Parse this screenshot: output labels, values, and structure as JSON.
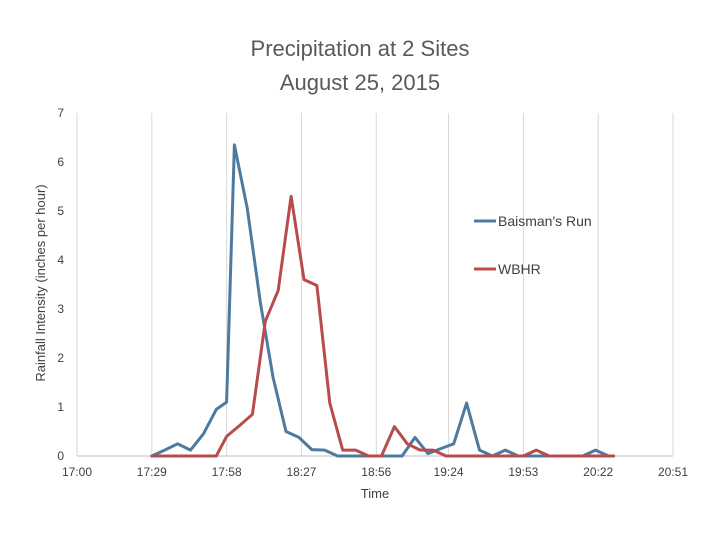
{
  "chart_data": {
    "type": "line",
    "title": [
      "Precipitation at 2 Sites",
      "August 25, 2015"
    ],
    "xlabel": "Time",
    "ylabel": "Rainfall Intensity (inches per hour)",
    "x_ticks": [
      "17:00",
      "17:29",
      "17:58",
      "18:27",
      "18:56",
      "19:24",
      "19:53",
      "20:22",
      "20:51"
    ],
    "x_range": [
      "17:00",
      "20:51"
    ],
    "ylim": [
      0,
      7
    ],
    "y_ticks": [
      0,
      1,
      2,
      3,
      4,
      5,
      6,
      7
    ],
    "grid": "vertical",
    "legend_position": "right",
    "series": [
      {
        "name": "Baisman's Run",
        "color": "#4f7aa0",
        "points": [
          [
            "17:29",
            0
          ],
          [
            "17:34",
            0.12
          ],
          [
            "17:39",
            0.25
          ],
          [
            "17:44",
            0.12
          ],
          [
            "17:49",
            0.45
          ],
          [
            "17:54",
            0.95
          ],
          [
            "17:58",
            1.1
          ],
          [
            "18:01",
            6.35
          ],
          [
            "18:06",
            5.05
          ],
          [
            "18:11",
            3.15
          ],
          [
            "18:16",
            1.6
          ],
          [
            "18:21",
            0.5
          ],
          [
            "18:26",
            0.38
          ],
          [
            "18:31",
            0.13
          ],
          [
            "18:36",
            0.12
          ],
          [
            "18:41",
            0
          ],
          [
            "18:46",
            0
          ],
          [
            "18:51",
            0
          ],
          [
            "18:56",
            0
          ],
          [
            "19:01",
            0
          ],
          [
            "19:06",
            0
          ],
          [
            "19:11",
            0.38
          ],
          [
            "19:16",
            0.05
          ],
          [
            "19:21",
            0.15
          ],
          [
            "19:26",
            0.25
          ],
          [
            "19:31",
            1.08
          ],
          [
            "19:36",
            0.12
          ],
          [
            "19:41",
            0
          ],
          [
            "19:46",
            0.12
          ],
          [
            "19:51",
            0
          ],
          [
            "19:56",
            0
          ],
          [
            "20:01",
            0
          ],
          [
            "20:06",
            0
          ],
          [
            "20:11",
            0
          ],
          [
            "20:16",
            0
          ],
          [
            "20:21",
            0.12
          ],
          [
            "20:26",
            0
          ]
        ]
      },
      {
        "name": "WBHR",
        "color": "#b84c4c",
        "points": [
          [
            "17:29",
            0
          ],
          [
            "17:34",
            0
          ],
          [
            "17:39",
            0
          ],
          [
            "17:44",
            0
          ],
          [
            "17:49",
            0
          ],
          [
            "17:54",
            0
          ],
          [
            "17:58",
            0.4
          ],
          [
            "18:03",
            0.62
          ],
          [
            "18:08",
            0.85
          ],
          [
            "18:13",
            2.75
          ],
          [
            "18:18",
            3.38
          ],
          [
            "18:23",
            5.3
          ],
          [
            "18:28",
            3.6
          ],
          [
            "18:33",
            3.48
          ],
          [
            "18:38",
            1.08
          ],
          [
            "18:43",
            0.12
          ],
          [
            "18:48",
            0.12
          ],
          [
            "18:53",
            0
          ],
          [
            "18:58",
            0
          ],
          [
            "19:03",
            0.6
          ],
          [
            "19:08",
            0.25
          ],
          [
            "19:13",
            0.12
          ],
          [
            "19:18",
            0.12
          ],
          [
            "19:23",
            0
          ],
          [
            "19:28",
            0
          ],
          [
            "19:33",
            0
          ],
          [
            "19:38",
            0
          ],
          [
            "19:43",
            0
          ],
          [
            "19:48",
            0
          ],
          [
            "19:53",
            0
          ],
          [
            "19:58",
            0.12
          ],
          [
            "20:03",
            0
          ],
          [
            "20:08",
            0
          ],
          [
            "20:13",
            0
          ],
          [
            "20:18",
            0
          ],
          [
            "20:23",
            0
          ],
          [
            "20:28",
            0
          ]
        ]
      }
    ]
  }
}
